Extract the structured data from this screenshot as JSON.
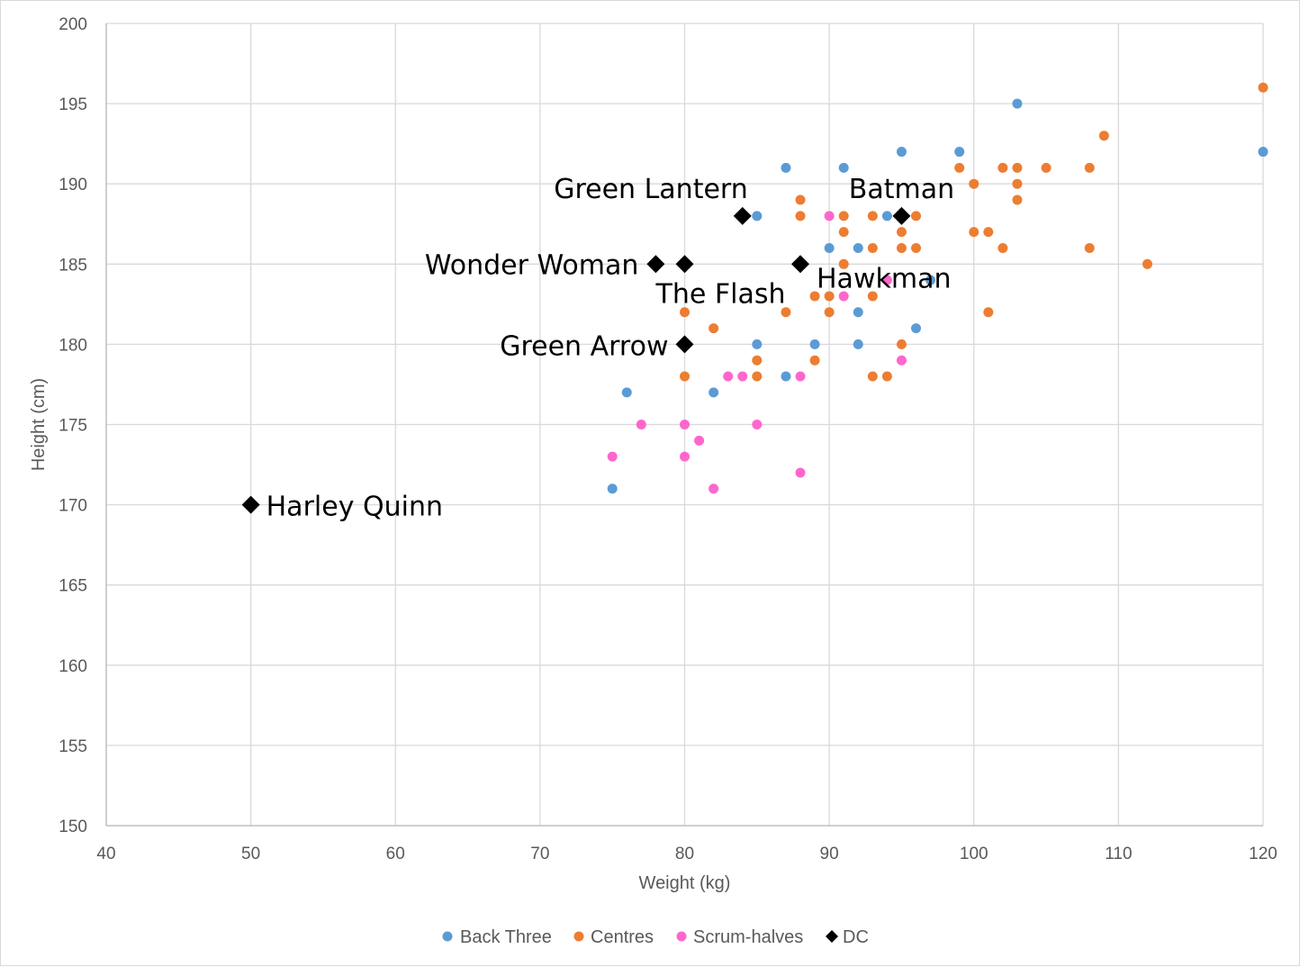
{
  "chart_data": {
    "type": "scatter",
    "title": "",
    "xlabel": "Weight (kg)",
    "ylabel": "Height (cm)",
    "xlim": [
      40,
      120
    ],
    "ylim": [
      150,
      200
    ],
    "xticks": [
      40,
      50,
      60,
      70,
      80,
      90,
      100,
      110,
      120
    ],
    "yticks": [
      150,
      155,
      160,
      165,
      170,
      175,
      180,
      185,
      190,
      195,
      200
    ],
    "grid": true,
    "legend_position": "bottom",
    "colors": {
      "back_three": "#5b9bd5",
      "centres": "#ed7d31",
      "scrum_halves": "#ff66cc",
      "dc": "#000000",
      "grid": "#d9d9d9",
      "axis": "#bfbfbf"
    },
    "series": [
      {
        "name": "Back Three",
        "marker": "circle",
        "points": [
          [
            103,
            195
          ],
          [
            95,
            192
          ],
          [
            99,
            192
          ],
          [
            120,
            192
          ],
          [
            87,
            191
          ],
          [
            91,
            191
          ],
          [
            85,
            188
          ],
          [
            94,
            188
          ],
          [
            90,
            186
          ],
          [
            92,
            186
          ],
          [
            97,
            184
          ],
          [
            92,
            182
          ],
          [
            96,
            181
          ],
          [
            85,
            180
          ],
          [
            89,
            180
          ],
          [
            92,
            180
          ],
          [
            87,
            178
          ],
          [
            76,
            177
          ],
          [
            82,
            177
          ],
          [
            75,
            171
          ]
        ]
      },
      {
        "name": "Centres",
        "marker": "circle",
        "points": [
          [
            120,
            196
          ],
          [
            109,
            193
          ],
          [
            99,
            191
          ],
          [
            102,
            191
          ],
          [
            103,
            191
          ],
          [
            105,
            191
          ],
          [
            108,
            191
          ],
          [
            100,
            190
          ],
          [
            103,
            190
          ],
          [
            88,
            189
          ],
          [
            103,
            189
          ],
          [
            88,
            188
          ],
          [
            91,
            188
          ],
          [
            93,
            188
          ],
          [
            96,
            188
          ],
          [
            91,
            187
          ],
          [
            95,
            187
          ],
          [
            100,
            187
          ],
          [
            101,
            187
          ],
          [
            93,
            186
          ],
          [
            95,
            186
          ],
          [
            96,
            186
          ],
          [
            102,
            186
          ],
          [
            108,
            186
          ],
          [
            91,
            185
          ],
          [
            112,
            185
          ],
          [
            89,
            183
          ],
          [
            90,
            183
          ],
          [
            93,
            183
          ],
          [
            80,
            182
          ],
          [
            87,
            182
          ],
          [
            90,
            182
          ],
          [
            101,
            182
          ],
          [
            82,
            181
          ],
          [
            95,
            180
          ],
          [
            85,
            179
          ],
          [
            89,
            179
          ],
          [
            80,
            178
          ],
          [
            85,
            178
          ],
          [
            93,
            178
          ],
          [
            94,
            178
          ]
        ]
      },
      {
        "name": "Scrum-halves",
        "marker": "circle",
        "points": [
          [
            90,
            188
          ],
          [
            94,
            184
          ],
          [
            91,
            183
          ],
          [
            95,
            179
          ],
          [
            83,
            178
          ],
          [
            84,
            178
          ],
          [
            88,
            178
          ],
          [
            77,
            175
          ],
          [
            80,
            175
          ],
          [
            85,
            175
          ],
          [
            81,
            174
          ],
          [
            75,
            173
          ],
          [
            80,
            173
          ],
          [
            88,
            172
          ],
          [
            82,
            171
          ]
        ]
      },
      {
        "name": "DC",
        "marker": "diamond",
        "points": [
          [
            84,
            188
          ],
          [
            95,
            188
          ],
          [
            78,
            185
          ],
          [
            80,
            185
          ],
          [
            88,
            185
          ],
          [
            80,
            180
          ],
          [
            50,
            170
          ]
        ]
      }
    ],
    "annotations": [
      {
        "text": "Green Lantern",
        "x": 84,
        "y": 188
      },
      {
        "text": "Batman",
        "x": 95,
        "y": 188
      },
      {
        "text": "Wonder Woman",
        "x": 78,
        "y": 185
      },
      {
        "text": "The Flash",
        "x": 80,
        "y": 185
      },
      {
        "text": "Hawkman",
        "x": 88,
        "y": 185
      },
      {
        "text": "Green Arrow",
        "x": 80,
        "y": 180
      },
      {
        "text": "Harley Quinn",
        "x": 50,
        "y": 170
      }
    ]
  }
}
